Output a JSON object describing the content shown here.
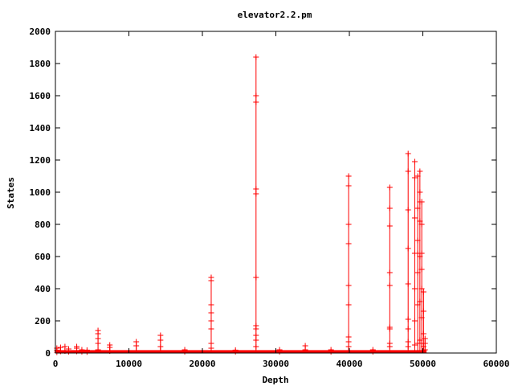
{
  "chart_data": {
    "type": "scatter",
    "title": "elevator2.2.pm",
    "xlabel": "Depth",
    "ylabel": "States",
    "xlim": [
      0,
      60000
    ],
    "ylim": [
      0,
      2000
    ],
    "xticks": [
      0,
      10000,
      20000,
      30000,
      40000,
      50000,
      60000
    ],
    "yticks": [
      0,
      200,
      400,
      600,
      800,
      1000,
      1200,
      1400,
      1600,
      1800,
      2000
    ],
    "grid": false,
    "legend": "none",
    "series_color": "#ff0000",
    "background_band": {
      "x": [
        0,
        50500
      ],
      "y": [
        0,
        18
      ]
    },
    "spikes": [
      {
        "x": 200,
        "values": [
          5,
          18,
          30
        ]
      },
      {
        "x": 700,
        "values": [
          10,
          35
        ]
      },
      {
        "x": 1300,
        "values": [
          12,
          40
        ]
      },
      {
        "x": 1800,
        "values": [
          8,
          25
        ]
      },
      {
        "x": 2900,
        "values": [
          10,
          30,
          40
        ]
      },
      {
        "x": 3600,
        "values": [
          8,
          20
        ]
      },
      {
        "x": 4300,
        "values": [
          6,
          18
        ]
      },
      {
        "x": 5800,
        "values": [
          20,
          60,
          90,
          120,
          140
        ]
      },
      {
        "x": 7400,
        "values": [
          12,
          35,
          50
        ]
      },
      {
        "x": 11000,
        "values": [
          15,
          45,
          70
        ]
      },
      {
        "x": 14300,
        "values": [
          15,
          40,
          80,
          110
        ]
      },
      {
        "x": 17600,
        "values": [
          8,
          20
        ]
      },
      {
        "x": 21200,
        "values": [
          30,
          60,
          150,
          200,
          250,
          300,
          450,
          470
        ]
      },
      {
        "x": 24500,
        "values": [
          8,
          18
        ]
      },
      {
        "x": 27300,
        "values": [
          40,
          80,
          110,
          150,
          170,
          470,
          990,
          1020,
          1560,
          1600,
          1840
        ]
      },
      {
        "x": 30500,
        "values": [
          8,
          20
        ]
      },
      {
        "x": 34000,
        "values": [
          20,
          45
        ]
      },
      {
        "x": 37500,
        "values": [
          8,
          20
        ]
      },
      {
        "x": 39900,
        "values": [
          40,
          70,
          100,
          300,
          420,
          680,
          800,
          1040,
          1100
        ]
      },
      {
        "x": 43200,
        "values": [
          8,
          20
        ]
      },
      {
        "x": 45500,
        "values": [
          40,
          60,
          150,
          160,
          420,
          500,
          790,
          900,
          1030
        ]
      },
      {
        "x": 48000,
        "values": [
          40,
          70,
          150,
          210,
          430,
          650,
          890,
          1130,
          1240
        ]
      },
      {
        "x": 48900,
        "values": [
          50,
          200,
          400,
          620,
          840,
          1090,
          1190
        ]
      },
      {
        "x": 49300,
        "values": [
          60,
          300,
          500,
          620,
          700,
          900,
          1100
        ]
      },
      {
        "x": 49600,
        "values": [
          80,
          320,
          600,
          820,
          940,
          1000,
          1130
        ]
      },
      {
        "x": 49850,
        "values": [
          60,
          220,
          400,
          520,
          620,
          800,
          940
        ]
      },
      {
        "x": 50100,
        "values": [
          40,
          120,
          260,
          380
        ]
      },
      {
        "x": 50300,
        "values": [
          20,
          60,
          90
        ]
      }
    ]
  }
}
